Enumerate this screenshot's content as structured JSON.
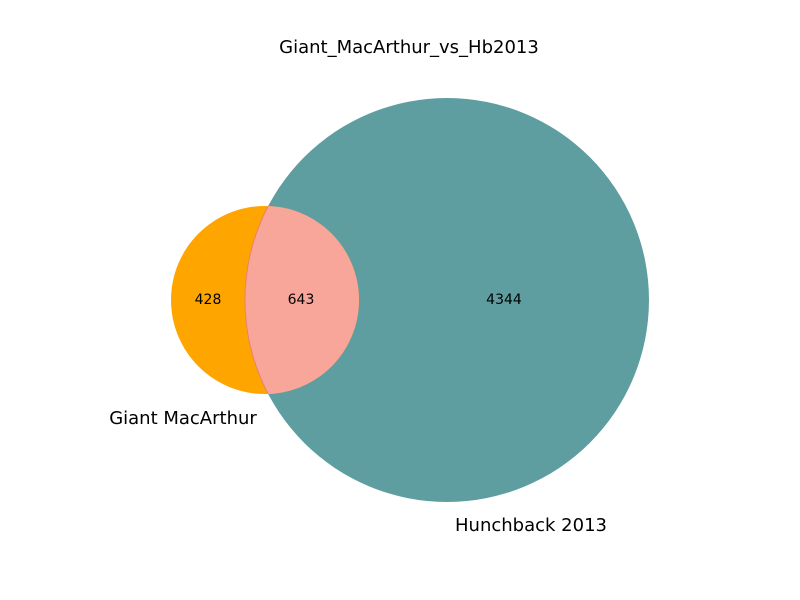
{
  "title": "Giant_MacArthur_vs_Hb2013",
  "sets": [
    {
      "label": "Giant MacArthur",
      "color": "#ffa500"
    },
    {
      "label": "Hunchback 2013",
      "color": "#5f9ea0"
    }
  ],
  "counts": {
    "only_a": "428",
    "both": "643",
    "only_b": "4344"
  },
  "intersection_color": "#f9a69a"
}
